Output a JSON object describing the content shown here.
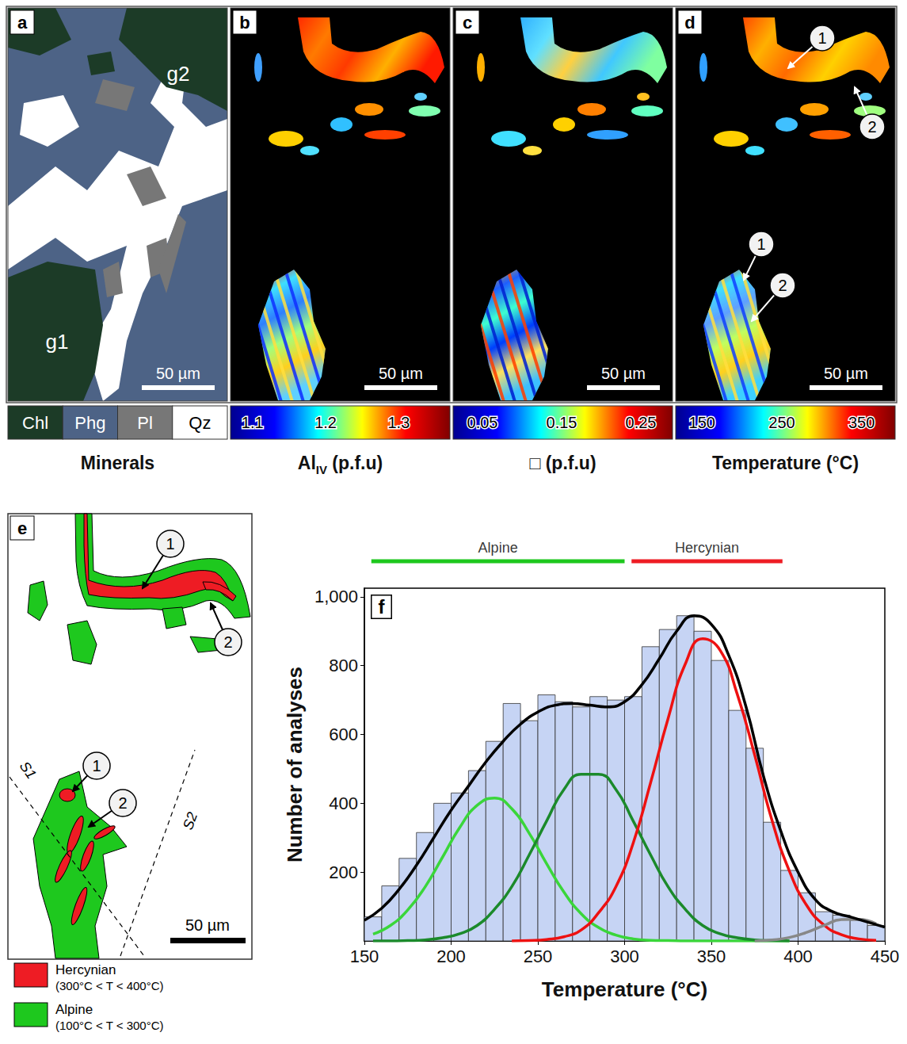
{
  "figure": {
    "maps": [
      {
        "letter": "a",
        "kind": "minerals",
        "grain_labels": [
          "g2",
          "g1"
        ],
        "scale_bar": "50 µm",
        "legend": [
          {
            "label": "Chl",
            "color": "#1c3b27"
          },
          {
            "label": "Phg",
            "color": "#4d6386"
          },
          {
            "label": "Pl",
            "color": "#777777"
          },
          {
            "label": "Qz",
            "color": "#ffffff"
          }
        ],
        "caption": [
          {
            "text": "Minerals"
          }
        ]
      },
      {
        "letter": "b",
        "kind": "map",
        "scale_bar": "50 µm",
        "colorbar": {
          "range": [
            1.07,
            1.37
          ],
          "ticks": [
            1.1,
            1.2,
            1.3
          ]
        },
        "caption": [
          {
            "text": "Al"
          },
          {
            "text": "IV",
            "sub": true
          },
          {
            "text": " (p.f.u)"
          }
        ]
      },
      {
        "letter": "c",
        "kind": "map",
        "scale_bar": "50 µm",
        "colorbar": {
          "range": [
            0.013,
            0.29
          ],
          "ticks": [
            0.05,
            0.15,
            0.25
          ]
        },
        "caption": [
          {
            "text": "□ (p.f.u)"
          }
        ]
      },
      {
        "letter": "d",
        "kind": "map",
        "scale_bar": "50 µm",
        "markers": [
          "1",
          "2"
        ],
        "colorbar": {
          "range": [
            117,
            392
          ],
          "ticks": [
            150,
            250,
            350
          ]
        },
        "caption": [
          {
            "text": "Temperature (°C)"
          }
        ]
      }
    ],
    "sketch": {
      "letter": "e",
      "markers": [
        "1",
        "2"
      ],
      "foliations": [
        "S1",
        "S2"
      ],
      "scale_bar": "50 µm",
      "legend": [
        {
          "label": "Hercynian",
          "range_text": "(300°C < T < 400°C)",
          "color": "#ee1c24"
        },
        {
          "label": "Alpine",
          "range_text": "(100°C < T < 300°C)",
          "color": "#1ec81e"
        }
      ]
    }
  },
  "chart_data": {
    "type": "histogram",
    "panel_label": "f",
    "xlabel": "Temperature (°C)",
    "ylabel": "Number of analyses",
    "bins": [
      150,
      160,
      170,
      180,
      190,
      200,
      210,
      220,
      230,
      240,
      250,
      260,
      270,
      280,
      290,
      300,
      310,
      320,
      330,
      340,
      350,
      360,
      370,
      380,
      390,
      400,
      410,
      420,
      430,
      440,
      450
    ],
    "counts": [
      70,
      160,
      240,
      315,
      400,
      430,
      495,
      580,
      690,
      640,
      715,
      695,
      680,
      710,
      700,
      710,
      855,
      905,
      945,
      900,
      815,
      670,
      560,
      345,
      205,
      140,
      85,
      75,
      60,
      45
    ],
    "color": "#c6d4f4",
    "xlim": [
      150,
      450
    ],
    "xticks": [
      150,
      200,
      250,
      300,
      350,
      400,
      450
    ],
    "ylim": [
      0,
      1025
    ],
    "yticks": [
      200,
      400,
      600,
      800,
      1000
    ],
    "grid": false,
    "series": [
      {
        "type": "line",
        "color": "#3ad63a",
        "x": [
          155,
          165,
          175,
          185,
          195,
          205,
          215,
          225,
          235,
          245,
          255,
          265,
          275,
          285,
          295,
          305,
          315,
          325,
          335,
          345,
          355,
          365,
          375,
          385,
          395
        ],
        "values": [
          20,
          45,
          90,
          157,
          243,
          330,
          394,
          415,
          384,
          313,
          225,
          142,
          79,
          39,
          17,
          6,
          2,
          1,
          0,
          0,
          0,
          0,
          0,
          0,
          0
        ]
      },
      {
        "type": "line",
        "color": "#1b8a2b",
        "x": [
          155,
          165,
          175,
          185,
          195,
          205,
          215,
          225,
          235,
          245,
          255,
          265,
          275,
          285,
          295,
          305,
          315,
          325,
          335,
          345,
          355,
          365,
          375,
          385,
          395
        ],
        "values": [
          0,
          0,
          1,
          3,
          9,
          21,
          45,
          92,
          158,
          250,
          348,
          440,
          484,
          484,
          440,
          348,
          250,
          158,
          92,
          45,
          21,
          9,
          3,
          1,
          0
        ]
      },
      {
        "type": "line",
        "color": "#ee1111",
        "x": [
          235,
          245,
          255,
          265,
          275,
          285,
          295,
          305,
          315,
          325,
          335,
          345,
          355,
          365,
          375,
          385,
          395,
          405,
          415,
          425,
          435,
          445
        ],
        "values": [
          0,
          1,
          4,
          12,
          32,
          82,
          158,
          285,
          460,
          645,
          805,
          878,
          845,
          716,
          540,
          350,
          203,
          103,
          46,
          18,
          6,
          2
        ]
      },
      {
        "type": "line",
        "color": "#888888",
        "x": [
          375,
          385,
          395,
          405,
          415,
          425,
          435,
          445
        ],
        "values": [
          0,
          3,
          10,
          25,
          45,
          62,
          63,
          50
        ]
      },
      {
        "type": "line",
        "color": "#000000",
        "x": [
          150,
          160,
          170,
          180,
          190,
          200,
          210,
          220,
          230,
          240,
          250,
          260,
          270,
          280,
          290,
          300,
          310,
          320,
          330,
          340,
          350,
          360,
          370,
          380,
          390,
          400,
          410,
          420,
          430,
          440,
          450
        ],
        "values": [
          60,
          95,
          150,
          220,
          300,
          380,
          450,
          520,
          580,
          630,
          665,
          685,
          690,
          685,
          680,
          695,
          745,
          820,
          900,
          945,
          920,
          830,
          680,
          480,
          320,
          200,
          120,
          85,
          70,
          55,
          40
        ]
      }
    ],
    "bands": [
      {
        "label": "Alpine",
        "range": [
          154,
          300
        ],
        "color": "#1ec81e"
      },
      {
        "label": "Hercynian",
        "range": [
          304,
          391
        ],
        "color": "#ee1c24"
      }
    ]
  }
}
